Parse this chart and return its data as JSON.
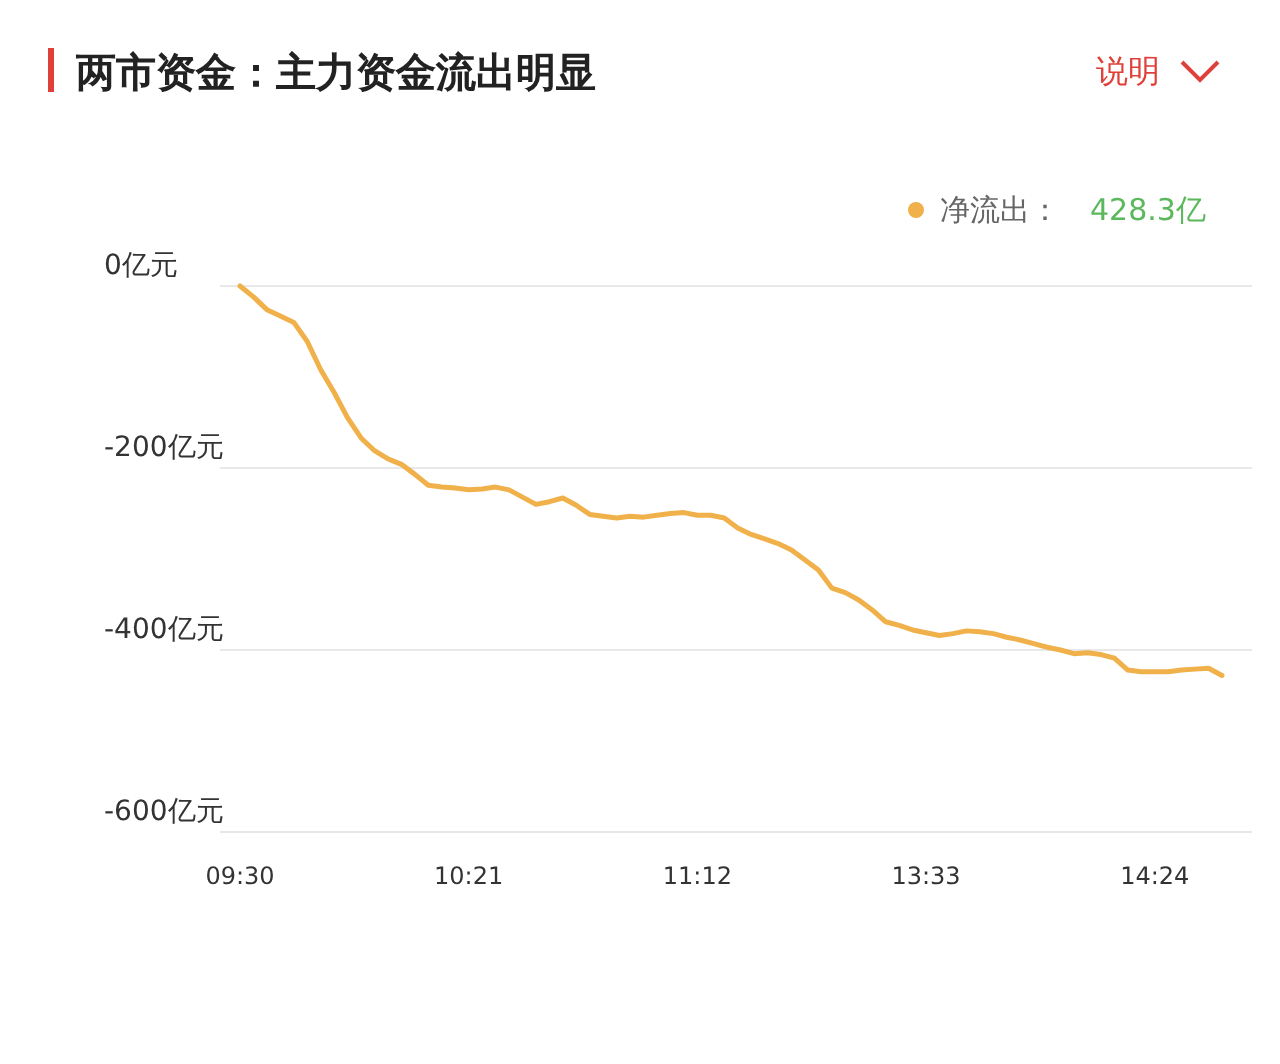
{
  "chart_data": {
    "type": "line",
    "title": "两市资金：主力资金流出明显",
    "annotations": [
      "说明",
      "428.3亿"
    ],
    "categories": [
      "09:30",
      null,
      null,
      null,
      null,
      null,
      null,
      null,
      null,
      null,
      null,
      null,
      null,
      null,
      null,
      null,
      null,
      "10:21",
      null,
      null,
      null,
      null,
      null,
      null,
      null,
      null,
      null,
      null,
      null,
      null,
      null,
      null,
      null,
      null,
      "11:12",
      null,
      null,
      null,
      null,
      null,
      null,
      null,
      null,
      null,
      null,
      null,
      null,
      null,
      null,
      null,
      null,
      "13:33",
      null,
      null,
      null,
      null,
      null,
      null,
      null,
      null,
      null,
      null,
      null,
      null,
      null,
      null,
      null,
      null,
      "14:24",
      null,
      null,
      null,
      null,
      null
    ],
    "series": [
      {
        "name": "净流出：",
        "color": "#f0b04a",
        "values": [
          0,
          -12,
          -26,
          -33,
          -40,
          -61,
          -92,
          -117,
          -145,
          -167,
          -181,
          -190,
          -196,
          -207,
          -219,
          -221,
          -222,
          -224,
          -223,
          -221,
          -224,
          -232,
          -240,
          -237,
          -233,
          -241,
          -251,
          -253,
          -255,
          -253,
          -254,
          -252,
          -250,
          -249,
          -252,
          -252,
          -255,
          -266,
          -273,
          -278,
          -283,
          -290,
          -301,
          -312,
          -332,
          -337,
          -345,
          -356,
          -369,
          -373,
          -378,
          -381,
          -384,
          -382,
          -379,
          -380,
          -382,
          -386,
          -389,
          -393,
          -397,
          -400,
          -404,
          -403,
          -405,
          -409,
          -422,
          -424,
          -424,
          -424,
          -422,
          -421,
          -420,
          -428
        ]
      }
    ],
    "ylim": [
      -600,
      0
    ],
    "yticks": [
      {
        "value": 0,
        "label": "0亿元"
      },
      {
        "value": -200,
        "label": "-200亿元"
      },
      {
        "value": -400,
        "label": "-400亿元"
      },
      {
        "value": -600,
        "label": "-600亿元"
      }
    ],
    "grid": "y",
    "legend": "top right",
    "marker": "none",
    "line_style": "solid"
  }
}
